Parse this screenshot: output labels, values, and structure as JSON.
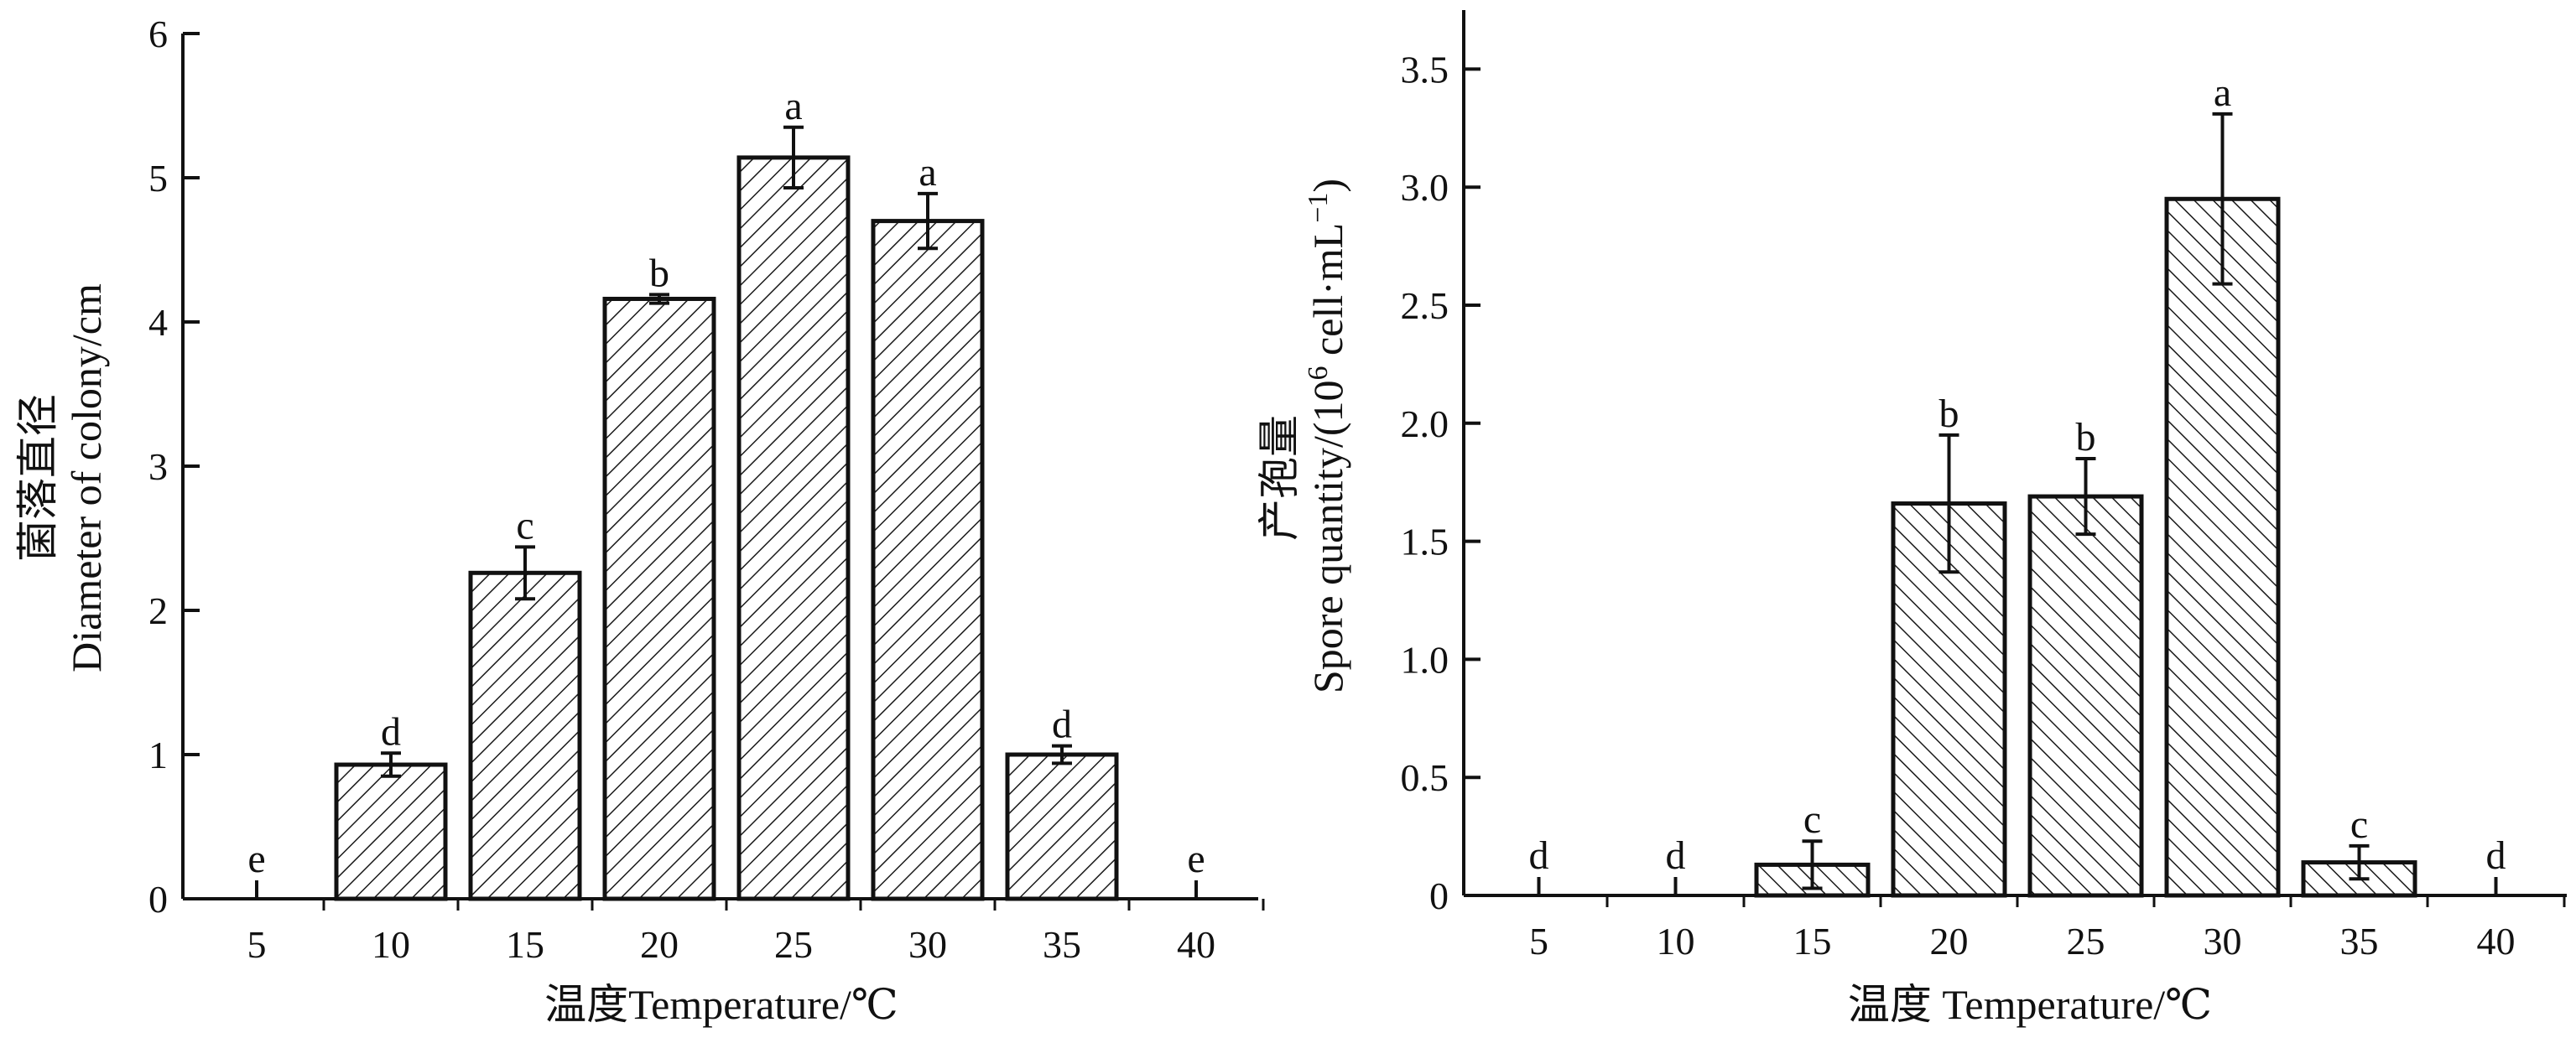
{
  "chart_data": [
    {
      "type": "bar",
      "categories": [
        "5",
        "10",
        "15",
        "20",
        "25",
        "30",
        "35",
        "40"
      ],
      "values": [
        0,
        0.93,
        2.26,
        4.16,
        5.14,
        4.7,
        1.0,
        0
      ],
      "errors": [
        0,
        0.08,
        0.18,
        0.03,
        0.21,
        0.19,
        0.06,
        0
      ],
      "significance_letters": [
        "e",
        "d",
        "c",
        "b",
        "a",
        "a",
        "d",
        "e"
      ],
      "xlabel": "温度Temperature/℃",
      "ylabel_cn": "菌落直径",
      "ylabel_en": "Diameter of colony/cm",
      "ylim": [
        0,
        6
      ],
      "yticks": [
        0,
        1,
        2,
        3,
        4,
        5,
        6
      ],
      "ytick_labels": [
        "0",
        "1",
        "2",
        "3",
        "4",
        "5",
        "6"
      ],
      "bar_fill": "hatched",
      "hatch_direction": "forward-slash"
    },
    {
      "type": "bar",
      "categories": [
        "5",
        "10",
        "15",
        "20",
        "25",
        "30",
        "35",
        "40"
      ],
      "values": [
        0,
        0,
        0.13,
        1.66,
        1.69,
        2.95,
        0.14,
        0
      ],
      "errors": [
        0,
        0,
        0.1,
        0.29,
        0.16,
        0.36,
        0.07,
        0
      ],
      "significance_letters": [
        "d",
        "d",
        "c",
        "b",
        "b",
        "a",
        "c",
        "d"
      ],
      "xlabel": "温度 Temperature/℃",
      "ylabel_cn": "产孢量",
      "ylabel_en": "Spore quantity/(10",
      "ylabel_sup1": "6",
      "ylabel_mid": " cell·mL",
      "ylabel_sup2": "−1",
      "ylabel_end": ")",
      "ylim": [
        0,
        3.75
      ],
      "yticks": [
        0,
        0.5,
        1.0,
        1.5,
        2.0,
        2.5,
        3.0,
        3.5
      ],
      "ytick_labels": [
        "0",
        "0.5",
        "1.0",
        "1.5",
        "2.0",
        "2.5",
        "3.0",
        "3.5"
      ],
      "bar_fill": "hatched",
      "hatch_direction": "back-slash"
    }
  ]
}
